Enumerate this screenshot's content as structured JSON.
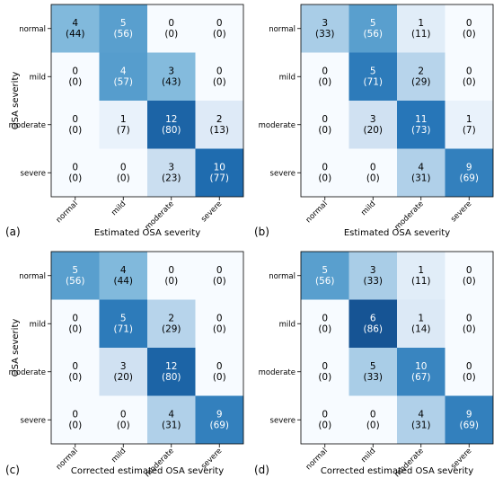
{
  "chart_data": [
    {
      "type": "heatmap",
      "panel_label": "(a)",
      "row_labels": [
        "normal",
        "mild",
        "moderate",
        "severe"
      ],
      "col_labels": [
        "normal",
        "mild",
        "moderate",
        "severe"
      ],
      "xlabel": "Estimated OSA severity",
      "ylabel": "OSA severity",
      "counts": [
        [
          4,
          5,
          0,
          0
        ],
        [
          0,
          4,
          3,
          0
        ],
        [
          0,
          1,
          12,
          2
        ],
        [
          0,
          0,
          3,
          10
        ]
      ],
      "percents": [
        [
          44,
          56,
          0,
          0
        ],
        [
          0,
          57,
          43,
          0
        ],
        [
          0,
          7,
          80,
          13
        ],
        [
          0,
          0,
          23,
          77
        ]
      ]
    },
    {
      "type": "heatmap",
      "panel_label": "(b)",
      "row_labels": [
        "normal",
        "mild",
        "moderate",
        "severe"
      ],
      "col_labels": [
        "normal",
        "mild",
        "moderate",
        "severe"
      ],
      "xlabel": "Estimated OSA severity",
      "ylabel": "",
      "counts": [
        [
          3,
          5,
          1,
          0
        ],
        [
          0,
          5,
          2,
          0
        ],
        [
          0,
          3,
          11,
          1
        ],
        [
          0,
          0,
          4,
          9
        ]
      ],
      "percents": [
        [
          33,
          56,
          11,
          0
        ],
        [
          0,
          71,
          29,
          0
        ],
        [
          0,
          20,
          73,
          7
        ],
        [
          0,
          0,
          31,
          69
        ]
      ]
    },
    {
      "type": "heatmap",
      "panel_label": "(c)",
      "row_labels": [
        "normal",
        "mild",
        "moderate",
        "severe"
      ],
      "col_labels": [
        "normal",
        "mild",
        "moderate",
        "severe"
      ],
      "xlabel": "Corrected estimated OSA severity",
      "ylabel": "OSA severity",
      "counts": [
        [
          5,
          4,
          0,
          0
        ],
        [
          0,
          5,
          2,
          0
        ],
        [
          0,
          3,
          12,
          0
        ],
        [
          0,
          0,
          4,
          9
        ]
      ],
      "percents": [
        [
          56,
          44,
          0,
          0
        ],
        [
          0,
          71,
          29,
          0
        ],
        [
          0,
          20,
          80,
          0
        ],
        [
          0,
          0,
          31,
          69
        ]
      ]
    },
    {
      "type": "heatmap",
      "panel_label": "(d)",
      "row_labels": [
        "normal",
        "mild",
        "moderate",
        "severe"
      ],
      "col_labels": [
        "normal",
        "mild",
        "moderate",
        "severe"
      ],
      "xlabel": "Corrected estimated OSA severity",
      "ylabel": "",
      "counts": [
        [
          5,
          3,
          1,
          0
        ],
        [
          0,
          6,
          1,
          0
        ],
        [
          0,
          5,
          10,
          0
        ],
        [
          0,
          0,
          4,
          9
        ]
      ],
      "percents": [
        [
          56,
          33,
          11,
          0
        ],
        [
          0,
          86,
          14,
          0
        ],
        [
          0,
          33,
          67,
          0
        ],
        [
          0,
          0,
          31,
          69
        ]
      ]
    }
  ],
  "colors": {
    "low": "#f7fbff",
    "mid1": "#c6dbef",
    "mid2": "#6baed6",
    "mid3": "#2171b5",
    "high": "#08306b"
  }
}
